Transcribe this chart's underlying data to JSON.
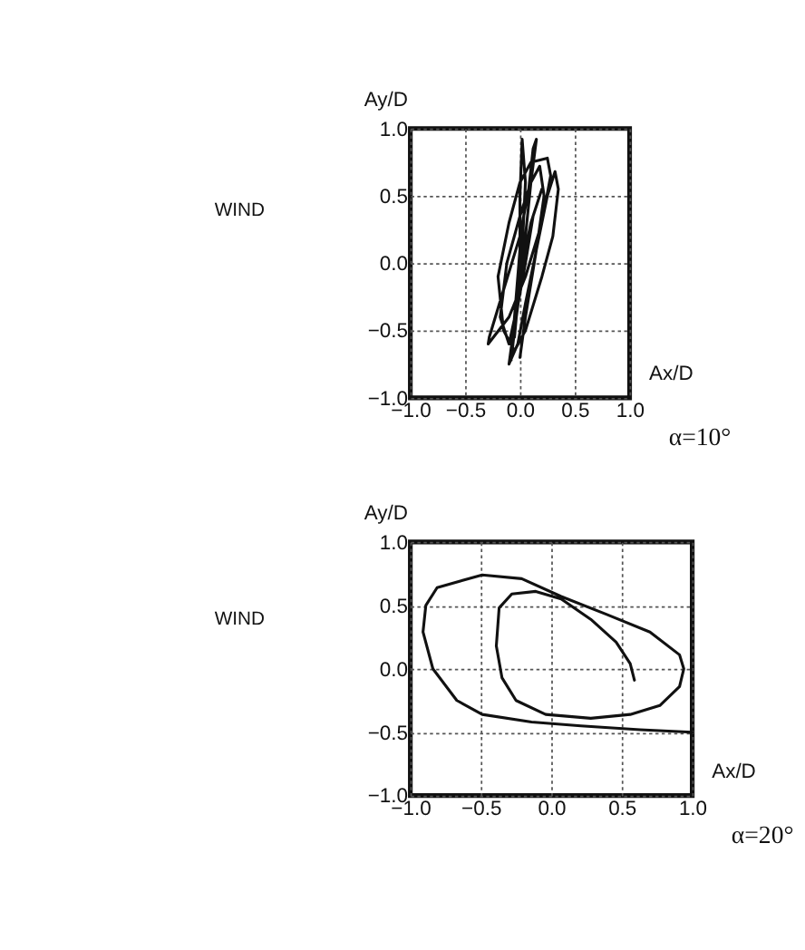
{
  "chart_data": [
    {
      "type": "line",
      "xlabel": "Ax/D",
      "ylabel": "Ay/D",
      "annotations": [
        "WIND",
        "α=10°"
      ],
      "xlim": [
        -1.0,
        1.0
      ],
      "ylim": [
        -1.0,
        1.0
      ],
      "xticks": [
        {
          "value": -1.0,
          "label": "−1.0"
        },
        {
          "value": -0.5,
          "label": "−0.5"
        },
        {
          "value": 0.0,
          "label": "0.0"
        },
        {
          "value": 0.5,
          "label": "0.5"
        },
        {
          "value": 1.0,
          "label": "1.0"
        }
      ],
      "yticks": [
        {
          "value": -1.0,
          "label": "−1.0"
        },
        {
          "value": -0.5,
          "label": "−0.5"
        },
        {
          "value": 0.0,
          "label": "0.0"
        },
        {
          "value": 0.5,
          "label": "0.5"
        },
        {
          "value": 1.0,
          "label": "1.0"
        }
      ],
      "grid": true,
      "line_style": "solid",
      "series": [
        {
          "color": "#111111",
          "x": [
            0.0,
            0.05,
            0.15,
            0.25,
            0.32,
            0.35,
            0.3,
            0.2,
            0.05,
            -0.05,
            -0.15,
            -0.2,
            -0.1,
            0.0,
            0.1,
            0.25,
            0.28,
            0.2,
            0.05,
            -0.1,
            -0.29,
            -0.28,
            -0.15,
            0.0,
            0.08,
            0.12,
            0.15,
            0.1,
            0.05,
            0.0,
            -0.05,
            -0.08,
            -0.05,
            0.0,
            0.0,
            0.02,
            0.05,
            0.02,
            -0.02,
            -0.1,
            -0.18,
            -0.12,
            0.0,
            0.1,
            0.18,
            0.22,
            0.15,
            0.05,
            -0.02,
            -0.1,
            -0.05,
            0.05,
            0.12,
            0.2,
            0.1,
            0.0,
            -0.05
          ],
          "values": [
            -0.7,
            -0.4,
            0.1,
            0.5,
            0.68,
            0.55,
            0.2,
            -0.1,
            -0.5,
            -0.65,
            -0.5,
            -0.1,
            0.3,
            0.6,
            0.75,
            0.78,
            0.65,
            0.3,
            -0.1,
            -0.4,
            -0.6,
            -0.55,
            -0.2,
            0.2,
            0.55,
            0.85,
            0.92,
            0.6,
            0.2,
            -0.2,
            -0.5,
            -0.72,
            -0.4,
            0.1,
            0.5,
            0.92,
            0.6,
            0.1,
            -0.3,
            -0.6,
            -0.4,
            0.0,
            0.35,
            0.6,
            0.72,
            0.5,
            0.1,
            -0.3,
            -0.6,
            -0.75,
            -0.45,
            0.0,
            0.35,
            0.55,
            0.3,
            -0.1,
            -0.55
          ]
        }
      ]
    },
    {
      "type": "line",
      "xlabel": "Ax/D",
      "ylabel": "Ay/D",
      "annotations": [
        "WIND",
        "α=20°"
      ],
      "xlim": [
        -1.0,
        1.0
      ],
      "ylim": [
        -1.0,
        1.0
      ],
      "xticks": [
        {
          "value": -1.0,
          "label": "−1.0"
        },
        {
          "value": -0.5,
          "label": "−0.5"
        },
        {
          "value": 0.0,
          "label": "0.0"
        },
        {
          "value": 0.5,
          "label": "0.5"
        },
        {
          "value": 1.0,
          "label": "1.0"
        }
      ],
      "yticks": [
        {
          "value": -1.0,
          "label": "−1.0"
        },
        {
          "value": -0.5,
          "label": "−0.5"
        },
        {
          "value": 0.0,
          "label": "0.0"
        },
        {
          "value": 0.5,
          "label": "0.5"
        },
        {
          "value": 1.0,
          "label": "1.0"
        }
      ],
      "grid": true,
      "line_style": "solid",
      "series": [
        {
          "color": "#111111",
          "x": [
            1.0,
            0.63,
            0.21,
            -0.14,
            -0.49,
            -0.67,
            -0.84,
            -0.91,
            -0.89,
            -0.81,
            -0.49,
            -0.21,
            0.07,
            0.39,
            0.7,
            0.91,
            0.94,
            0.91,
            0.77,
            0.56,
            0.28,
            -0.04,
            -0.25,
            -0.35,
            -0.39,
            -0.37,
            -0.28,
            -0.11,
            0.07,
            0.28,
            0.46,
            0.56,
            0.59
          ],
          "values": [
            -0.5,
            -0.48,
            -0.45,
            -0.42,
            -0.36,
            -0.25,
            0.0,
            0.29,
            0.5,
            0.64,
            0.74,
            0.71,
            0.57,
            0.43,
            0.29,
            0.11,
            0.0,
            -0.14,
            -0.29,
            -0.36,
            -0.39,
            -0.36,
            -0.25,
            -0.07,
            0.18,
            0.48,
            0.59,
            0.61,
            0.55,
            0.39,
            0.21,
            0.04,
            -0.09
          ]
        }
      ]
    }
  ]
}
